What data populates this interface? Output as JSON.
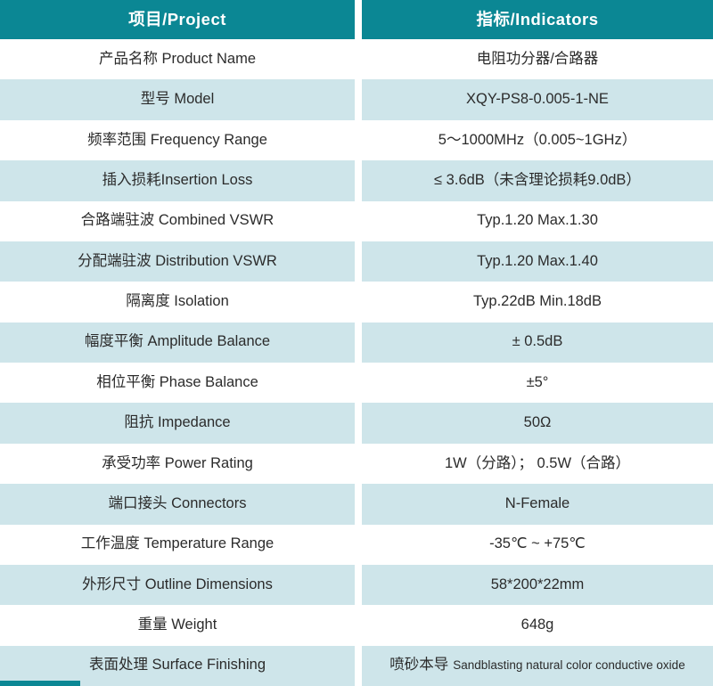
{
  "page_title": "Product Specification Table",
  "colors": {
    "header_bg": "#0b8794",
    "stripe_bg": "#cee5ea",
    "row_bg": "#ffffff",
    "header_text": "#ffffff",
    "cell_text": "#2b2b2b"
  },
  "table": {
    "header": {
      "project": "项目/Project",
      "indicators": "指标/Indicators"
    },
    "rows": [
      {
        "label": "产品名称 Product Name",
        "value": "电阻功分器/合路器"
      },
      {
        "label": "型号 Model",
        "value": "XQY-PS8-0.005-1-NE"
      },
      {
        "label": "频率范围 Frequency Range",
        "value": "5～1000MHz（0.005~1GHz）"
      },
      {
        "label": "插入损耗Insertion Loss",
        "value": "≤ 3.6dB（未含理论损耗9.0dB）"
      },
      {
        "label": "合路端驻波 Combined VSWR",
        "value": "Typ.1.20 Max.1.30"
      },
      {
        "label": "分配端驻波 Distribution VSWR",
        "value": "Typ.1.20 Max.1.40"
      },
      {
        "label": "隔离度 Isolation",
        "value": "Typ.22dB Min.18dB"
      },
      {
        "label": "幅度平衡 Amplitude Balance",
        "value": "± 0.5dB"
      },
      {
        "label": "相位平衡 Phase Balance",
        "value": "±5°"
      },
      {
        "label": "阻抗 Impedance",
        "value": "50Ω"
      },
      {
        "label": "承受功率 Power Rating",
        "value": "1W（分路）； 0.5W（合路）"
      },
      {
        "label": "端口接头 Connectors",
        "value": "N-Female"
      },
      {
        "label": "工作温度 Temperature Range",
        "value": "-35℃ ~ +75℃"
      },
      {
        "label": "外形尺寸 Outline Dimensions",
        "value": "58*200*22mm"
      },
      {
        "label": "重量 Weight",
        "value": "648g"
      },
      {
        "label": "表面处理 Surface Finishing",
        "value": "喷砂本导",
        "value2": "Sandblasting natural color conductive oxide"
      }
    ]
  }
}
